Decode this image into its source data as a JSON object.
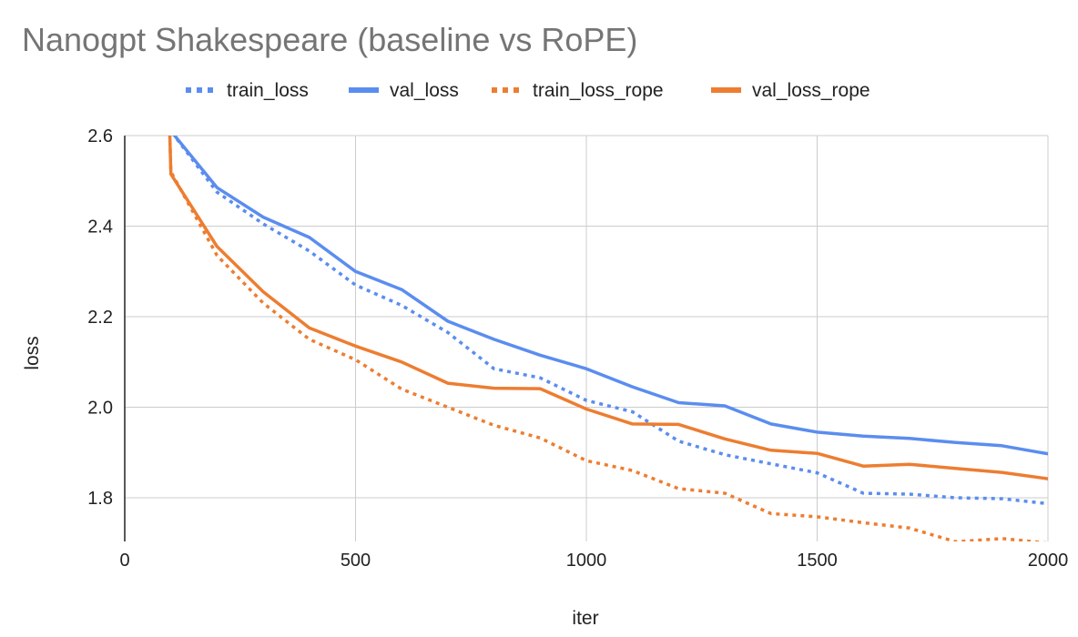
{
  "chart_data": {
    "type": "line",
    "title": "Nanogpt Shakespeare (baseline vs RoPE)",
    "xlabel": "iter",
    "ylabel": "loss",
    "xlim": [
      0,
      2000
    ],
    "ylim": [
      1.7,
      2.6
    ],
    "x_ticks": [
      "0",
      "500",
      "1000",
      "1500",
      "2000"
    ],
    "y_ticks": [
      "1.8",
      "2.0",
      "2.2",
      "2.4",
      "2.6"
    ],
    "grid": true,
    "legend_position": "top",
    "x": [
      100,
      200,
      300,
      400,
      500,
      600,
      700,
      800,
      900,
      1000,
      1100,
      1200,
      1300,
      1400,
      1500,
      1600,
      1700,
      1800,
      1900,
      2000
    ],
    "series": [
      {
        "name": "train_loss",
        "color": "#5b8def",
        "dashed": true,
        "values": [
          2.61,
          2.475,
          2.405,
          2.345,
          2.27,
          2.225,
          2.165,
          2.085,
          2.065,
          2.015,
          1.99,
          1.925,
          1.895,
          1.875,
          1.855,
          1.81,
          1.808,
          1.8,
          1.798,
          1.787
        ]
      },
      {
        "name": "val_loss",
        "color": "#5b8def",
        "dashed": false,
        "values": [
          2.61,
          2.485,
          2.42,
          2.375,
          2.3,
          2.26,
          2.19,
          2.15,
          2.115,
          2.085,
          2.045,
          2.01,
          2.003,
          1.963,
          1.945,
          1.936,
          1.931,
          1.922,
          1.915,
          1.897
        ]
      },
      {
        "name": "train_loss_rope",
        "color": "#ed7d31",
        "dashed": true,
        "values": [
          2.52,
          2.335,
          2.23,
          2.15,
          2.105,
          2.04,
          2.0,
          1.96,
          1.932,
          1.882,
          1.86,
          1.82,
          1.81,
          1.765,
          1.758,
          1.745,
          1.733,
          1.703,
          1.71,
          1.7
        ]
      },
      {
        "name": "val_loss_rope",
        "color": "#ed7d31",
        "dashed": false,
        "values": [
          2.515,
          2.355,
          2.255,
          2.175,
          2.135,
          2.1,
          2.053,
          2.042,
          2.041,
          1.996,
          1.963,
          1.962,
          1.93,
          1.905,
          1.898,
          1.87,
          1.874,
          1.865,
          1.856,
          1.842
        ]
      }
    ]
  }
}
